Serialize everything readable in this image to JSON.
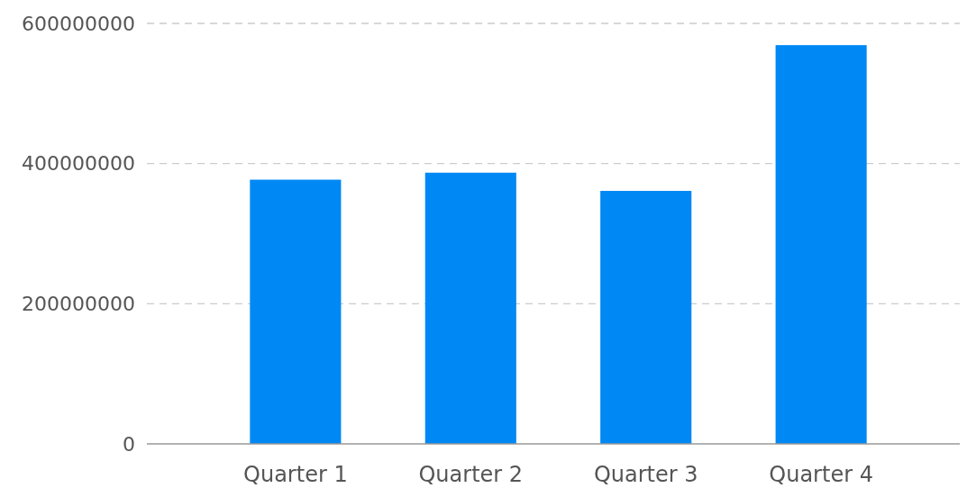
{
  "chart_data": {
    "type": "bar",
    "categories": [
      "Quarter 1",
      "Quarter 2",
      "Quarter 3",
      "Quarter 4"
    ],
    "values": [
      377000000,
      387000000,
      361000000,
      569000000
    ],
    "color": "#0088f5",
    "ylim": [
      0,
      600000000
    ],
    "yticks": [
      0,
      200000000,
      400000000,
      600000000
    ],
    "grid": "y"
  }
}
